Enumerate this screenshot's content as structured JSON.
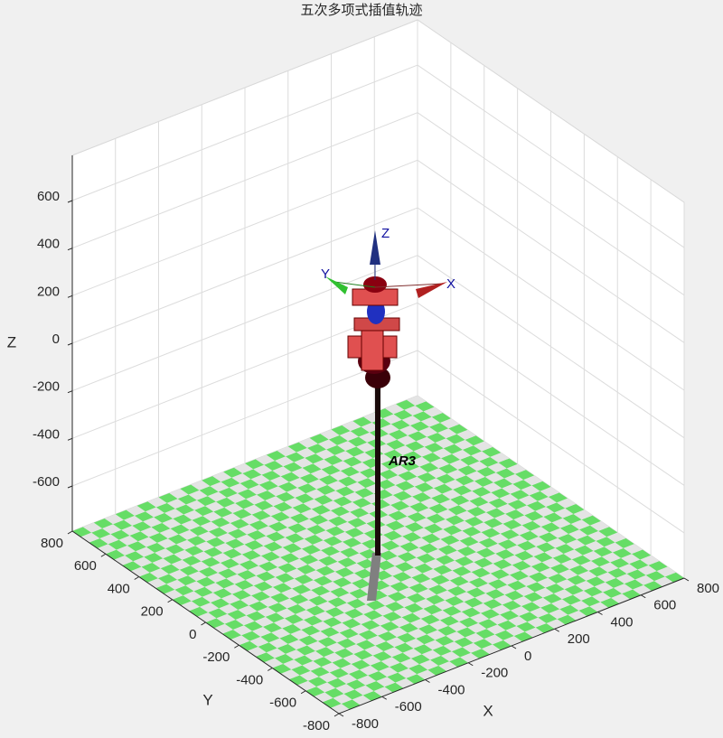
{
  "chart_data": {
    "type": "3d-axes",
    "title": "五次多项式插值轨迹",
    "xlabel": "X",
    "ylabel": "Y",
    "zlabel": "Z",
    "xlim": [
      -800,
      800
    ],
    "ylim": [
      -800,
      800
    ],
    "zlim": [
      -790,
      790
    ],
    "xticks": [
      -800,
      -600,
      -400,
      -200,
      0,
      200,
      400,
      600,
      800
    ],
    "yticks": [
      -800,
      -600,
      -400,
      -200,
      0,
      200,
      400,
      600,
      800
    ],
    "zticks": [
      -600,
      -400,
      -200,
      0,
      200,
      400,
      600
    ],
    "grid": true,
    "robot": {
      "name": "AR3",
      "frame_labels": [
        "X",
        "Y",
        "Z"
      ]
    }
  }
}
